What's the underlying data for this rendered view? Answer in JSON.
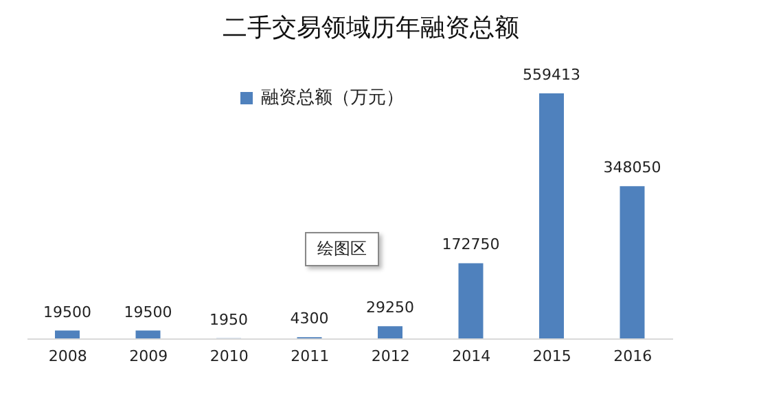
{
  "chart_data": {
    "type": "bar",
    "title": "二手交易领域历年融资总额",
    "categories": [
      "2008",
      "2009",
      "2010",
      "2011",
      "2012",
      "2014",
      "2015",
      "2016"
    ],
    "series": [
      {
        "name": "融资总额（万元）",
        "color": "#4f81bd",
        "values": [
          19500,
          19500,
          1950,
          4300,
          29250,
          172750,
          559413,
          348050
        ]
      }
    ],
    "data_labels": true,
    "legend": "top",
    "annotations": [
      "绘图区"
    ]
  }
}
